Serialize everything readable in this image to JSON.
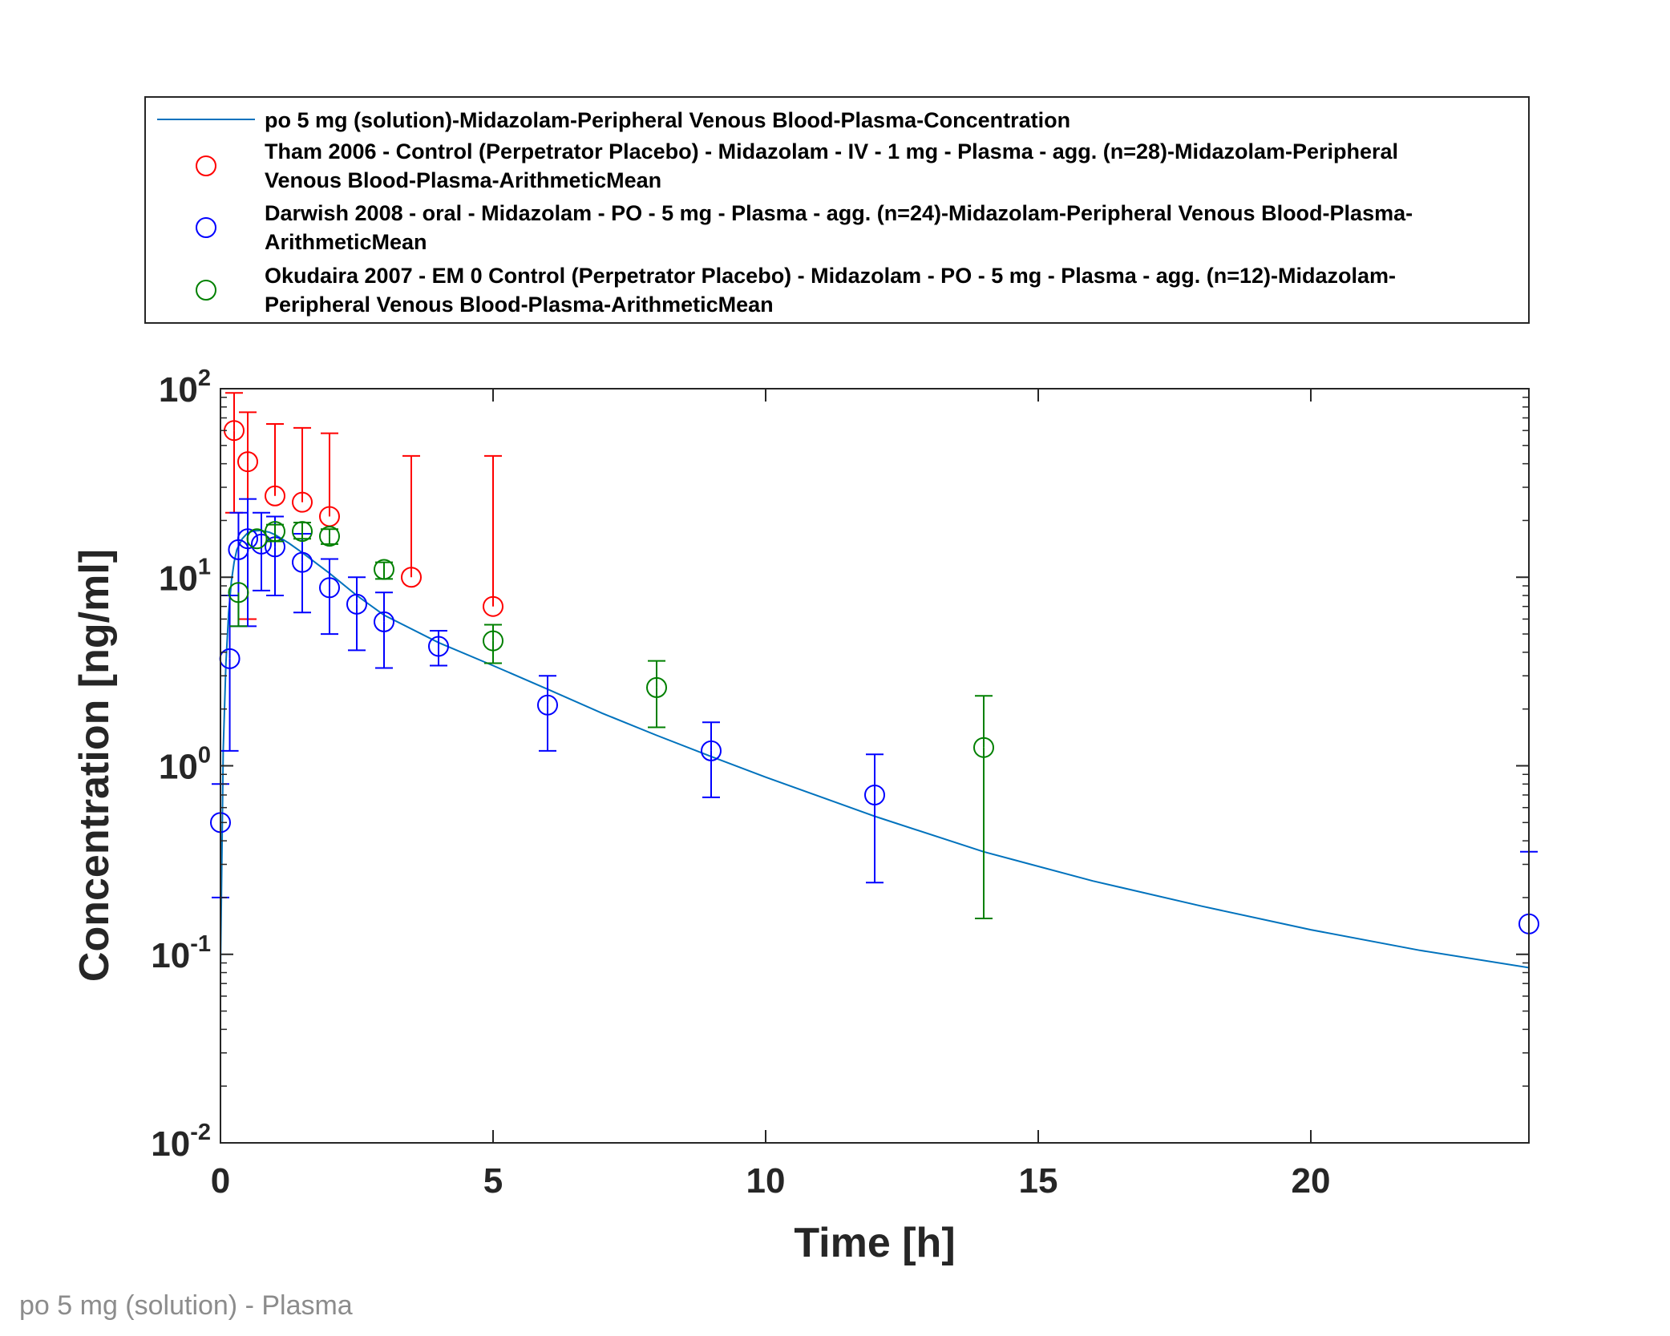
{
  "footer": {
    "caption": "po 5 mg (solution) - Plasma"
  },
  "chart_data": {
    "type": "line",
    "xlabel": "Time [h]",
    "ylabel": "Concentration [ng/ml]",
    "xlim": [
      0,
      24
    ],
    "ylim": [
      0.01,
      100
    ],
    "yscale": "log",
    "xticks": [
      0,
      5,
      10,
      15,
      20
    ],
    "yticks": [
      {
        "value": 0.01,
        "base": "10",
        "exp": "-2"
      },
      {
        "value": 0.1,
        "base": "10",
        "exp": "-1"
      },
      {
        "value": 1,
        "base": "10",
        "exp": "0"
      },
      {
        "value": 10,
        "base": "10",
        "exp": "1"
      },
      {
        "value": 100,
        "base": "10",
        "exp": "2"
      }
    ],
    "legend_position": "above plot",
    "grid": false,
    "series": [
      {
        "kind": "line",
        "color": "#0072bd",
        "legend": [
          "po 5 mg (solution)-Midazolam-Peripheral Venous Blood-Plasma-Concentration"
        ],
        "x": [
          0,
          0.05,
          0.1,
          0.15,
          0.2,
          0.25,
          0.3,
          0.4,
          0.5,
          0.6,
          0.75,
          0.9,
          1,
          1.25,
          1.5,
          2,
          2.5,
          3,
          4,
          5,
          6,
          7,
          8,
          9,
          10,
          12,
          14,
          16,
          18,
          20,
          22,
          24
        ],
        "y": [
          0.08,
          1.2,
          3.5,
          6.5,
          9.5,
          12.0,
          14.0,
          16.0,
          17.2,
          17.6,
          17.7,
          17.3,
          16.8,
          15.2,
          13.5,
          10.5,
          8.0,
          6.3,
          4.5,
          3.4,
          2.55,
          1.9,
          1.45,
          1.12,
          0.87,
          0.54,
          0.35,
          0.245,
          0.18,
          0.135,
          0.105,
          0.085
        ]
      },
      {
        "kind": "scatter",
        "color": "#ff0000",
        "legend": [
          "Tham 2006 - Control (Perpetrator Placebo) - Midazolam - IV - 1 mg - Plasma - agg. (n=28)-Midazolam-Peripheral",
          "Venous Blood-Plasma-ArithmeticMean"
        ],
        "x": [
          0.25,
          0.5,
          1,
          1.5,
          2,
          3.5,
          5
        ],
        "y": [
          60,
          41,
          27,
          25,
          21,
          10,
          7
        ],
        "err_lower": [
          22,
          6,
          null,
          null,
          null,
          null,
          null
        ],
        "err_upper": [
          95,
          75,
          65,
          62,
          58,
          44,
          44
        ]
      },
      {
        "kind": "scatter",
        "color": "#0000ff",
        "legend": [
          "Darwish 2008 - oral - Midazolam - PO - 5 mg - Plasma - agg. (n=24)-Midazolam-Peripheral Venous Blood-Plasma-",
          "ArithmeticMean"
        ],
        "x": [
          0,
          0.17,
          0.33,
          0.5,
          0.75,
          1,
          1.5,
          2,
          2.5,
          3,
          4,
          6,
          9,
          12,
          24
        ],
        "y": [
          0.5,
          3.7,
          14,
          16,
          15,
          14.5,
          12,
          8.8,
          7.2,
          5.8,
          4.3,
          2.1,
          1.2,
          0.7,
          0.145
        ],
        "err_lower": [
          0.2,
          1.2,
          5.5,
          5.5,
          8.5,
          8,
          6.5,
          5,
          4.1,
          3.3,
          3.4,
          1.2,
          0.68,
          0.24,
          null
        ],
        "err_upper": [
          0.8,
          8,
          22,
          26,
          22,
          21,
          17,
          12.5,
          10,
          8.3,
          5.2,
          3,
          1.7,
          1.15,
          0.35
        ]
      },
      {
        "kind": "scatter",
        "color": "#008000",
        "legend": [
          "Okudaira 2007 - EM 0 Control (Perpetrator Placebo) - Midazolam - PO - 5 mg - Plasma - agg. (n=12)-Midazolam-",
          "Peripheral Venous Blood-Plasma-ArithmeticMean"
        ],
        "x": [
          0.33,
          0.67,
          1,
          1.5,
          2,
          3,
          5,
          8,
          14
        ],
        "y": [
          8.3,
          16,
          17.5,
          17.5,
          16.5,
          11,
          4.6,
          2.6,
          1.25
        ],
        "err_lower": [
          5.5,
          null,
          15.5,
          16,
          15,
          9.8,
          3.5,
          1.6,
          0.155
        ],
        "err_upper": [
          null,
          null,
          19,
          19.5,
          18,
          12,
          5.6,
          3.6,
          2.35
        ]
      }
    ]
  }
}
